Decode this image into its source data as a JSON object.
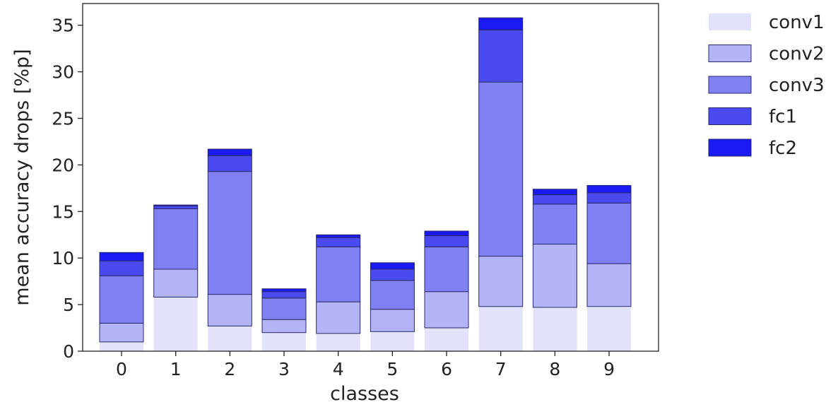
{
  "chart_data": {
    "type": "bar",
    "stacked": true,
    "xlabel": "classes",
    "ylabel": "mean accuracy drops [%p]",
    "ylim": [
      0,
      37.5
    ],
    "yticks": [
      0,
      5,
      10,
      15,
      20,
      25,
      30,
      35
    ],
    "categories": [
      "0",
      "1",
      "2",
      "3",
      "4",
      "5",
      "6",
      "7",
      "8",
      "9"
    ],
    "legend_position": "outside-right-top",
    "grid": false,
    "series": [
      {
        "name": "conv1",
        "color": "#e2e2fa",
        "values": [
          1.0,
          5.8,
          2.7,
          2.0,
          1.9,
          2.1,
          2.5,
          4.8,
          4.7,
          4.8
        ]
      },
      {
        "name": "conv2",
        "color": "#b3b3f5",
        "values": [
          2.0,
          3.0,
          3.4,
          1.4,
          3.4,
          2.4,
          3.9,
          5.4,
          6.8,
          4.6
        ]
      },
      {
        "name": "conv3",
        "color": "#8080f2",
        "values": [
          5.1,
          6.5,
          13.2,
          2.3,
          5.9,
          3.1,
          4.8,
          18.7,
          4.3,
          6.5
        ]
      },
      {
        "name": "fc1",
        "color": "#4a4af0",
        "values": [
          1.6,
          0.3,
          1.7,
          0.7,
          1.0,
          1.2,
          1.2,
          5.6,
          1.0,
          1.1
        ]
      },
      {
        "name": "fc2",
        "color": "#1a1af0",
        "values": [
          0.9,
          0.1,
          0.7,
          0.3,
          0.3,
          0.7,
          0.5,
          1.3,
          0.6,
          0.8
        ]
      }
    ]
  }
}
